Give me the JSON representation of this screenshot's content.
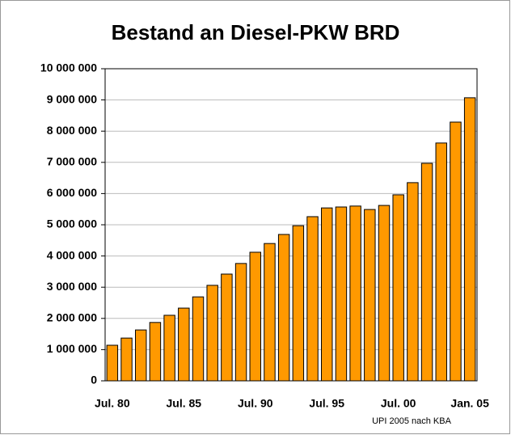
{
  "chart_data": {
    "type": "bar",
    "title": "Bestand an Diesel-PKW  BRD",
    "categories": [
      "Jul. 80",
      null,
      null,
      null,
      null,
      "Jul. 85",
      null,
      null,
      null,
      null,
      "Jul. 90",
      null,
      null,
      null,
      null,
      "Jul. 95",
      null,
      null,
      null,
      null,
      "Jul. 00",
      null,
      null,
      null,
      null,
      "Jan. 05"
    ],
    "values": [
      1140000,
      1370000,
      1630000,
      1870000,
      2100000,
      2330000,
      2690000,
      3060000,
      3420000,
      3760000,
      4120000,
      4400000,
      4690000,
      4970000,
      5260000,
      5540000,
      5570000,
      5600000,
      5490000,
      5620000,
      5960000,
      6350000,
      6970000,
      7620000,
      8290000,
      9070000
    ],
    "color": "#ff9900",
    "ylim": [
      0,
      10000000
    ],
    "yticks": [
      0,
      {
        "value": 1000000,
        "label": "1 000 000"
      },
      {
        "value": 2000000,
        "label": "2 000 000"
      },
      {
        "value": 3000000,
        "label": "3 000 000"
      },
      {
        "value": 4000000,
        "label": "4 000 000"
      },
      {
        "value": 5000000,
        "label": "5 000 000"
      },
      {
        "value": 6000000,
        "label": "6 000 000"
      },
      {
        "value": 7000000,
        "label": "7 000 000"
      },
      {
        "value": 8000000,
        "label": "8 000 000"
      },
      {
        "value": 9000000,
        "label": "9 000 000"
      },
      {
        "value": 10000000,
        "label": "10 000 000"
      }
    ],
    "grid": true,
    "annotation": "UPI 2005 nach KBA"
  }
}
